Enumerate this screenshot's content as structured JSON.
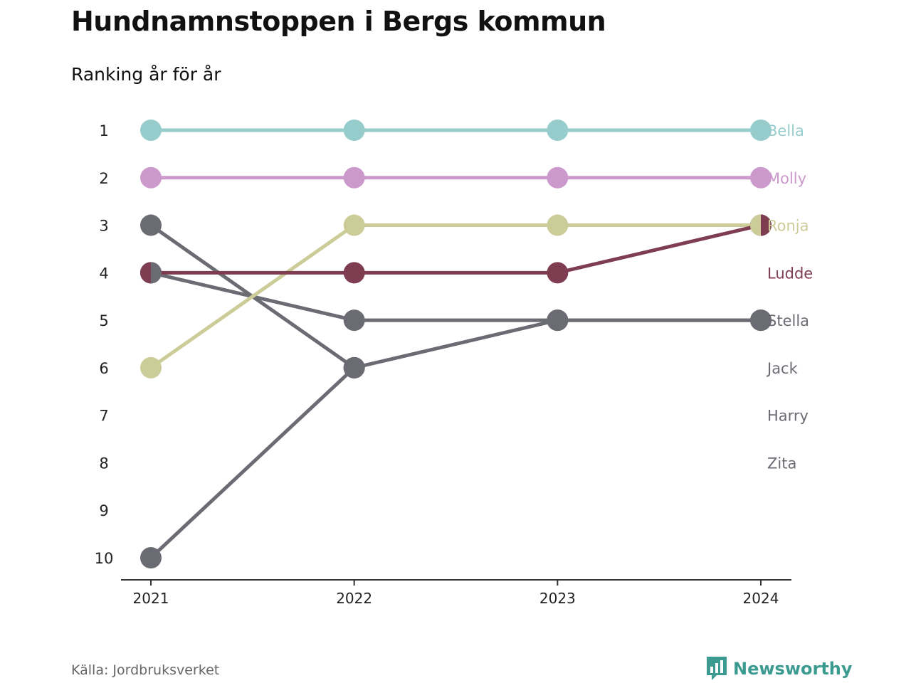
{
  "header": {
    "title": "Hundnamnstoppen i Bergs kommun",
    "subtitle": "Ranking år för år"
  },
  "footer": {
    "source": "Källa: Jordbruksverket",
    "brand": "Newsworthy",
    "brand_icon": "newsworthy-logo-icon"
  },
  "colors": {
    "Bella": "#96cccc",
    "Molly": "#cc99cc",
    "Ronja": "#cccc99",
    "Ludde": "#7f3d52",
    "grey": "#6b6b73",
    "axis": "#333333"
  },
  "chart_data": {
    "type": "line",
    "title": "Hundnamnstoppen i Bergs kommun",
    "subtitle": "Ranking år för år",
    "x": [
      "2021",
      "2022",
      "2023",
      "2024"
    ],
    "yticks": [
      1,
      2,
      3,
      4,
      5,
      6,
      7,
      8,
      9,
      10
    ],
    "ylim": [
      1,
      10
    ],
    "y_reversed": true,
    "grid": false,
    "series": [
      {
        "name": "Bella",
        "values": [
          1,
          1,
          1,
          1
        ],
        "color": "#96cccc"
      },
      {
        "name": "Molly",
        "values": [
          2,
          2,
          2,
          2
        ],
        "color": "#cc99cc"
      },
      {
        "name": "Ronja",
        "values": [
          6,
          3,
          3,
          3
        ],
        "color": "#cccc99"
      },
      {
        "name": "Ludde",
        "values": [
          4,
          4,
          4,
          3
        ],
        "color": "#7f3d52"
      },
      {
        "name": "Stella",
        "values": [
          4,
          5,
          5,
          5
        ],
        "color": "#6b6b73"
      },
      {
        "name": "Jack",
        "values": [
          3,
          6,
          null,
          null
        ],
        "color": "#6b6b73"
      },
      {
        "name": "Harry",
        "values": [
          10,
          6,
          5,
          5
        ],
        "color": "#6b6b73"
      },
      {
        "name": "Zita",
        "values": [
          null,
          null,
          null,
          null
        ],
        "color": "#6b6b73"
      }
    ],
    "end_labels": [
      {
        "name": "Bella",
        "rank": 1,
        "color": "#96cccc"
      },
      {
        "name": "Molly",
        "rank": 2,
        "color": "#cc99cc"
      },
      {
        "name": "Ronja",
        "rank": 3,
        "color": "#cccc99"
      },
      {
        "name": "Ludde",
        "rank": 4,
        "color": "#7f3d52"
      },
      {
        "name": "Stella",
        "rank": 5,
        "color": "#6b6b73"
      },
      {
        "name": "Jack",
        "rank": 6,
        "color": "#6b6b73"
      },
      {
        "name": "Harry",
        "rank": 7,
        "color": "#6b6b73"
      },
      {
        "name": "Zita",
        "rank": 8,
        "color": "#6b6b73"
      }
    ]
  }
}
